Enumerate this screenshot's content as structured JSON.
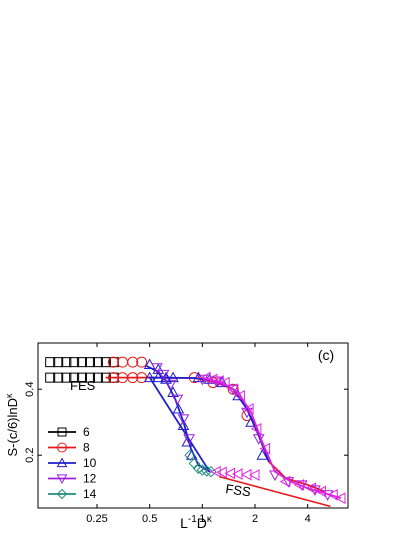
{
  "chart_data": {
    "type": "scatter",
    "panel_label": "(c)",
    "xlabel": "L⁻¹D^κ",
    "ylabel": "S-(c/6)lnD^κ",
    "xscale": "log",
    "xlim": [
      0.115,
      6.8
    ],
    "ylim": [
      0.04,
      0.54
    ],
    "xticks": [
      0.25,
      0.5,
      1,
      2,
      4
    ],
    "xtick_labels": [
      "0.25",
      "0.5",
      "1",
      "2",
      "4"
    ],
    "yticks": [
      0.2,
      0.4
    ],
    "ytick_labels": [
      "0.2",
      "0.4"
    ],
    "grid": false,
    "legend_position": "left",
    "series": [
      {
        "name": "6",
        "color": "#000000",
        "marker": "square",
        "x": [
          0.135,
          0.15,
          0.167,
          0.185,
          0.205,
          0.228,
          0.253,
          0.281,
          0.312,
          0.135,
          0.15,
          0.167,
          0.185,
          0.205,
          0.228,
          0.253,
          0.281,
          0.312
        ],
        "y": [
          0.482,
          0.482,
          0.482,
          0.482,
          0.482,
          0.482,
          0.482,
          0.482,
          0.482,
          0.435,
          0.435,
          0.435,
          0.435,
          0.435,
          0.435,
          0.435,
          0.435,
          0.435
        ]
      },
      {
        "name": "8",
        "color": "#e8191a",
        "marker": "circle",
        "x": [
          0.31,
          0.35,
          0.4,
          0.45,
          0.31,
          0.35,
          0.4,
          0.45,
          0.9,
          1.15,
          1.5,
          1.8
        ],
        "y": [
          0.482,
          0.482,
          0.482,
          0.482,
          0.435,
          0.435,
          0.435,
          0.435,
          0.435,
          0.42,
          0.4,
          0.32
        ],
        "line_x": [
          0.28,
          0.5,
          0.9,
          1.2,
          1.5,
          1.8,
          2.1,
          2.4,
          3.0,
          4.0,
          5.0
        ],
        "line_y": [
          0.435,
          0.435,
          0.434,
          0.42,
          0.4,
          0.34,
          0.26,
          0.18,
          0.13,
          0.11,
          0.09
        ]
      },
      {
        "name": "10",
        "color": "#1f1fcc",
        "marker": "triangle-up",
        "x": [
          0.5,
          0.56,
          0.62,
          0.68,
          0.73,
          0.78,
          0.82,
          0.87,
          0.5,
          0.56,
          0.62,
          0.68,
          0.95,
          1.1,
          1.3,
          1.6,
          1.9,
          2.2
        ],
        "y": [
          0.475,
          0.46,
          0.43,
          0.39,
          0.34,
          0.29,
          0.24,
          0.2,
          0.435,
          0.435,
          0.435,
          0.435,
          0.435,
          0.43,
          0.42,
          0.38,
          0.3,
          0.2
        ],
        "line_x": [
          0.48,
          0.55,
          0.62,
          0.7,
          0.78,
          0.86,
          0.95,
          1.1,
          0.5,
          0.9,
          1.2,
          1.5,
          1.8,
          2.1,
          2.4
        ],
        "line_y": [
          0.47,
          0.455,
          0.425,
          0.37,
          0.3,
          0.22,
          0.17,
          0.15,
          0.435,
          0.434,
          0.425,
          0.4,
          0.34,
          0.26,
          0.18
        ]
      },
      {
        "name": "12",
        "color": "#9a1fe0",
        "marker": "triangle-down",
        "x": [
          0.55,
          0.6,
          0.66,
          0.72,
          0.78,
          0.84,
          1.0,
          1.2,
          1.5,
          1.8,
          2.1,
          2.6,
          3.1,
          3.7,
          4.4,
          5.2
        ],
        "y": [
          0.465,
          0.445,
          0.415,
          0.37,
          0.31,
          0.25,
          0.43,
          0.425,
          0.4,
          0.33,
          0.25,
          0.14,
          0.12,
          0.11,
          0.095,
          0.08
        ]
      },
      {
        "name": "14",
        "color": "#1e8c7e",
        "marker": "diamond",
        "x": [
          0.85,
          0.9,
          0.95,
          1.0,
          1.06,
          1.12
        ],
        "y": [
          0.2,
          0.175,
          0.16,
          0.155,
          0.152,
          0.15
        ]
      },
      {
        "name": "",
        "color": "#e020e0",
        "marker": "triangle-left",
        "x": [
          1.05,
          1.15,
          1.25,
          1.35,
          1.5,
          1.65,
          1.85,
          2.05,
          2.3,
          1.2,
          1.3,
          1.45,
          1.6,
          1.8,
          2.0,
          3.0,
          3.6,
          4.2,
          4.8,
          5.6,
          6.2
        ],
        "y": [
          0.435,
          0.43,
          0.425,
          0.42,
          0.4,
          0.38,
          0.34,
          0.28,
          0.22,
          0.15,
          0.148,
          0.145,
          0.143,
          0.141,
          0.14,
          0.12,
          0.11,
          0.1,
          0.09,
          0.08,
          0.07
        ],
        "line_x": [
          1.0,
          1.3,
          1.6,
          1.9,
          2.2,
          2.6,
          3.2,
          4.0,
          5.0,
          6.2
        ],
        "line_y": [
          0.435,
          0.42,
          0.39,
          0.33,
          0.24,
          0.15,
          0.12,
          0.1,
          0.085,
          0.07
        ]
      }
    ],
    "annotations": [
      {
        "text": "FES",
        "x": 0.14,
        "y": 0.39
      },
      {
        "text": "FSS",
        "x": 2.45,
        "y": 0.085
      },
      {
        "text": "",
        "type": "line",
        "color": "#e8191a",
        "x": [
          1.25,
          5.4
        ],
        "y": [
          0.135,
          0.045
        ]
      }
    ]
  }
}
